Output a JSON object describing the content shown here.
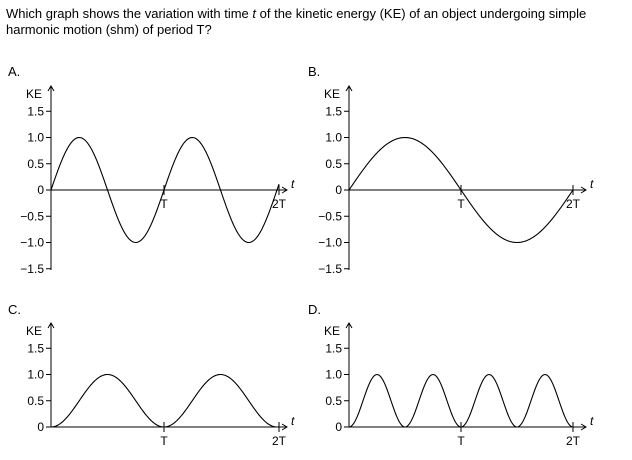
{
  "question": {
    "part1": "Which graph shows the variation with time ",
    "t": "t",
    "part2": " of the kinetic energy (KE) of an object undergoing simple harmonic motion (shm) of period T?"
  },
  "options": [
    {
      "label": "A.",
      "kind": "sine",
      "cycles_per_T": 1,
      "y_ticks": [
        "1.5",
        "1.0",
        "0.5",
        "0",
        "−0.5",
        "−1.0",
        "−1.5"
      ],
      "x_ticks": [
        "T",
        "2T"
      ],
      "y_axis_title": "KE",
      "x_axis_title": "t"
    },
    {
      "label": "B.",
      "kind": "sine",
      "cycles_per_T": 0.5,
      "y_ticks": [
        "1.5",
        "1.0",
        "0.5",
        "0",
        "−0.5",
        "−1.0",
        "−1.5"
      ],
      "x_ticks": [
        "T",
        "2T"
      ],
      "y_axis_title": "KE",
      "x_axis_title": "t"
    },
    {
      "label": "C.",
      "kind": "sin2",
      "cycles_per_T": 1,
      "y_ticks": [
        "1.5",
        "1.0",
        "0.5",
        "0"
      ],
      "x_ticks": [
        "T",
        "2T"
      ],
      "y_axis_title": "KE",
      "x_axis_title": "t"
    },
    {
      "label": "D.",
      "kind": "sin2",
      "cycles_per_T": 2,
      "y_ticks": [
        "1.5",
        "1.0",
        "0.5",
        "0"
      ],
      "x_ticks": [
        "T",
        "2T"
      ],
      "y_axis_title": "KE",
      "x_axis_title": "t"
    }
  ]
}
